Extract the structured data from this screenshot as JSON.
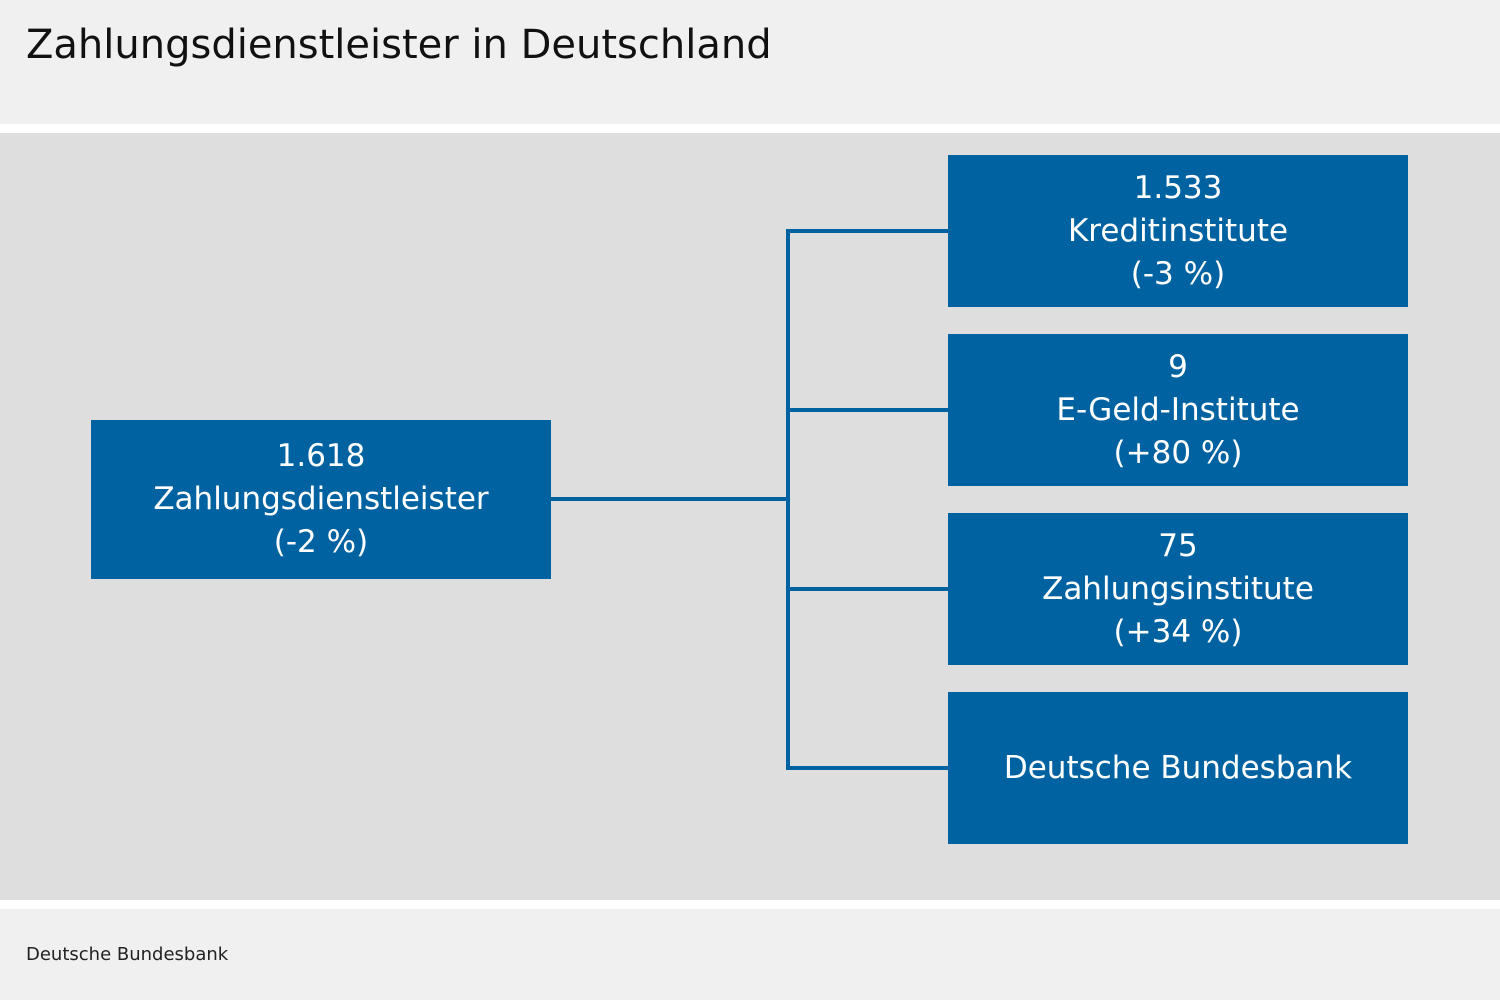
{
  "title": "Zahlungsdienstleister in Deutschland",
  "source": "Deutsche Bundesbank",
  "colors": {
    "box": "#0062a1",
    "panel": "#dedede",
    "background": "#f0f0f0",
    "connector": "#0062a1"
  },
  "root": {
    "value": "1.618",
    "label": "Zahlungsdienstleister",
    "change": "(-2 %)"
  },
  "children": [
    {
      "value": "1.533",
      "label": "Kreditinstitute",
      "change": "(-3 %)"
    },
    {
      "value": "9",
      "label": "E-Geld-Institute",
      "change": "(+80 %)"
    },
    {
      "value": "75",
      "label": "Zahlungsinstitute",
      "change": "(+34 %)"
    },
    {
      "label": "Deutsche Bundesbank"
    }
  ]
}
